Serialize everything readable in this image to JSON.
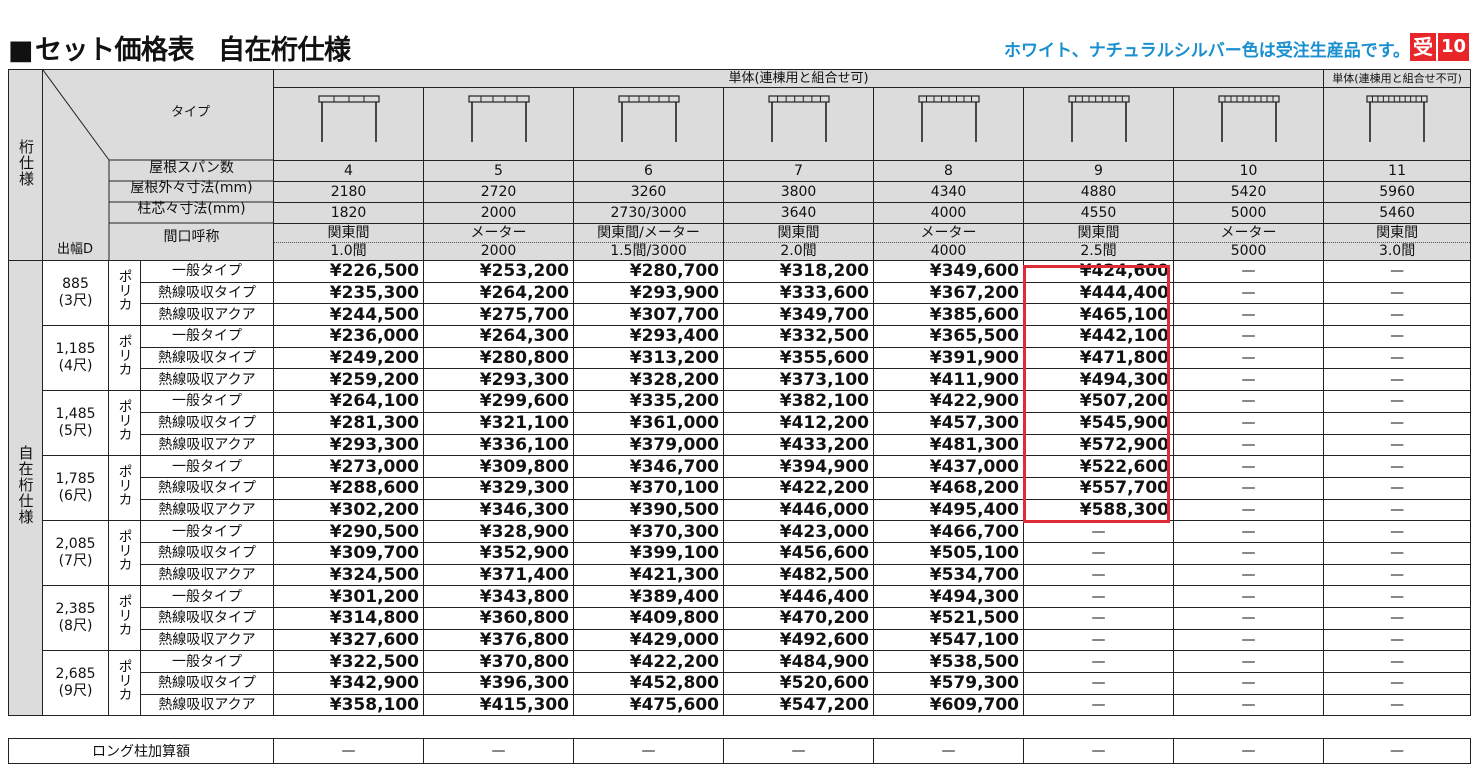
{
  "header": {
    "square": "■",
    "title": "セット価格表",
    "subtitle": "自在桁仕様",
    "note": "ホワイト、ナチュラルシルバー色は受注生産品です。",
    "badge_label": "受",
    "badge_number": "10"
  },
  "table": {
    "left_label_top": "桁仕様",
    "left_label_bottom": "自在桁仕様",
    "group_single": "単体(連棟用と組合せ可)",
    "group_single_nocombine": "単体(連棟用と組合せ不可)",
    "label_type": "タイプ",
    "label_span": "屋根スパン数",
    "label_outer": "屋根外々寸法(mm)",
    "label_pillar": "柱芯々寸法(mm)",
    "label_frontage": "間口呼称",
    "label_depth": "出幅D",
    "columns": [
      {
        "span": "4",
        "outer": "2180",
        "pillar": "1820",
        "front1": "関東間",
        "front2": "1.0間"
      },
      {
        "span": "5",
        "outer": "2720",
        "pillar": "2000",
        "front1": "メーター",
        "front2": "2000"
      },
      {
        "span": "6",
        "outer": "3260",
        "pillar": "2730/3000",
        "front1": "関東間/メーター",
        "front2": "1.5間/3000"
      },
      {
        "span": "7",
        "outer": "3800",
        "pillar": "3640",
        "front1": "関東間",
        "front2": "2.0間"
      },
      {
        "span": "8",
        "outer": "4340",
        "pillar": "4000",
        "front1": "メーター",
        "front2": "4000"
      },
      {
        "span": "9",
        "outer": "4880",
        "pillar": "4550",
        "front1": "関東間",
        "front2": "2.5間"
      },
      {
        "span": "10",
        "outer": "5420",
        "pillar": "5000",
        "front1": "メーター",
        "front2": "5000"
      },
      {
        "span": "11",
        "outer": "5960",
        "pillar": "5460",
        "front1": "関東間",
        "front2": "3.0間"
      }
    ],
    "material": "ポリカ",
    "types": [
      "一般タイプ",
      "熱線吸収タイプ",
      "熱線吸収アクア"
    ],
    "groups": [
      {
        "depth": "885",
        "shaku": "(3尺)",
        "rows": [
          [
            "¥226,500",
            "¥253,200",
            "¥280,700",
            "¥318,200",
            "¥349,600",
            "¥424,600",
            "—",
            "—"
          ],
          [
            "¥235,300",
            "¥264,200",
            "¥293,900",
            "¥333,600",
            "¥367,200",
            "¥444,400",
            "—",
            "—"
          ],
          [
            "¥244,500",
            "¥275,700",
            "¥307,700",
            "¥349,700",
            "¥385,600",
            "¥465,100",
            "—",
            "—"
          ]
        ]
      },
      {
        "depth": "1,185",
        "shaku": "(4尺)",
        "rows": [
          [
            "¥236,000",
            "¥264,300",
            "¥293,400",
            "¥332,500",
            "¥365,500",
            "¥442,100",
            "—",
            "—"
          ],
          [
            "¥249,200",
            "¥280,800",
            "¥313,200",
            "¥355,600",
            "¥391,900",
            "¥471,800",
            "—",
            "—"
          ],
          [
            "¥259,200",
            "¥293,300",
            "¥328,200",
            "¥373,100",
            "¥411,900",
            "¥494,300",
            "—",
            "—"
          ]
        ]
      },
      {
        "depth": "1,485",
        "shaku": "(5尺)",
        "rows": [
          [
            "¥264,100",
            "¥299,600",
            "¥335,200",
            "¥382,100",
            "¥422,900",
            "¥507,200",
            "—",
            "—"
          ],
          [
            "¥281,300",
            "¥321,100",
            "¥361,000",
            "¥412,200",
            "¥457,300",
            "¥545,900",
            "—",
            "—"
          ],
          [
            "¥293,300",
            "¥336,100",
            "¥379,000",
            "¥433,200",
            "¥481,300",
            "¥572,900",
            "—",
            "—"
          ]
        ]
      },
      {
        "depth": "1,785",
        "shaku": "(6尺)",
        "rows": [
          [
            "¥273,000",
            "¥309,800",
            "¥346,700",
            "¥394,900",
            "¥437,000",
            "¥522,600",
            "—",
            "—"
          ],
          [
            "¥288,600",
            "¥329,300",
            "¥370,100",
            "¥422,200",
            "¥468,200",
            "¥557,700",
            "—",
            "—"
          ],
          [
            "¥302,200",
            "¥346,300",
            "¥390,500",
            "¥446,000",
            "¥495,400",
            "¥588,300",
            "—",
            "—"
          ]
        ]
      },
      {
        "depth": "2,085",
        "shaku": "(7尺)",
        "rows": [
          [
            "¥290,500",
            "¥328,900",
            "¥370,300",
            "¥423,000",
            "¥466,700",
            "—",
            "—",
            "—"
          ],
          [
            "¥309,700",
            "¥352,900",
            "¥399,100",
            "¥456,600",
            "¥505,100",
            "—",
            "—",
            "—"
          ],
          [
            "¥324,500",
            "¥371,400",
            "¥421,300",
            "¥482,500",
            "¥534,700",
            "—",
            "—",
            "—"
          ]
        ]
      },
      {
        "depth": "2,385",
        "shaku": "(8尺)",
        "rows": [
          [
            "¥301,200",
            "¥343,800",
            "¥389,400",
            "¥446,400",
            "¥494,300",
            "—",
            "—",
            "—"
          ],
          [
            "¥314,800",
            "¥360,800",
            "¥409,800",
            "¥470,200",
            "¥521,500",
            "—",
            "—",
            "—"
          ],
          [
            "¥327,600",
            "¥376,800",
            "¥429,000",
            "¥492,600",
            "¥547,100",
            "—",
            "—",
            "—"
          ]
        ]
      },
      {
        "depth": "2,685",
        "shaku": "(9尺)",
        "rows": [
          [
            "¥322,500",
            "¥370,800",
            "¥422,200",
            "¥484,900",
            "¥538,500",
            "—",
            "—",
            "—"
          ],
          [
            "¥342,900",
            "¥396,300",
            "¥452,800",
            "¥520,600",
            "¥579,300",
            "—",
            "—",
            "—"
          ],
          [
            "¥358,100",
            "¥415,300",
            "¥475,600",
            "¥547,200",
            "¥609,700",
            "—",
            "—",
            "—"
          ]
        ]
      }
    ]
  },
  "footer": {
    "label": "ロング柱加算額",
    "values": [
      "—",
      "—",
      "—",
      "—",
      "—",
      "—",
      "—",
      "—"
    ]
  },
  "colors": {
    "accent_blue": "#1a8fd0",
    "badge_red": "#e8262a",
    "highlight_red": "#e02a35",
    "header_gray": "#dcdcdc"
  }
}
